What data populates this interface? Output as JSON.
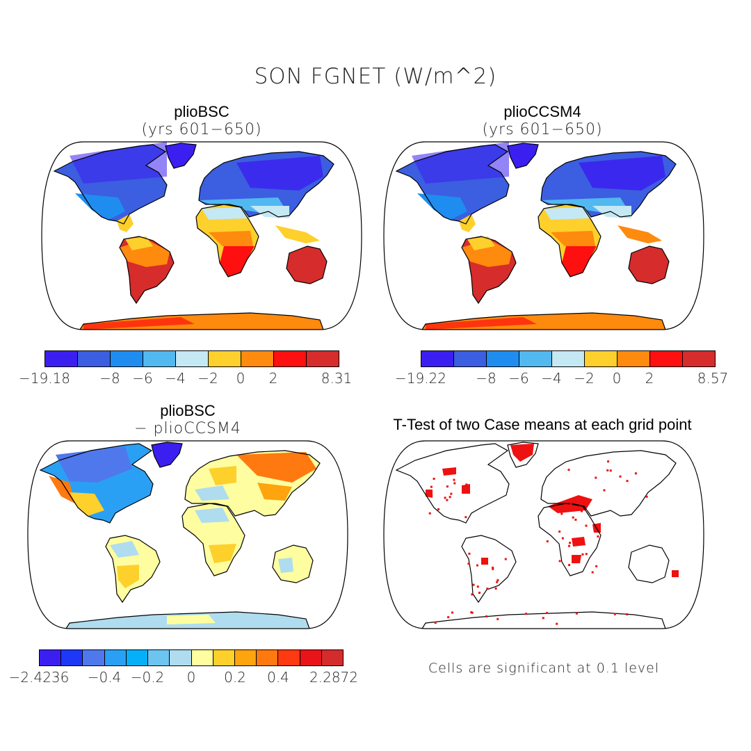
{
  "figure": {
    "title": "SON FGNET (W/m^2)",
    "panels": [
      {
        "title": "plioBSC",
        "subtitle": "(yrs 601−650)",
        "colorbar": {
          "colors": [
            "#3b1ff0",
            "#3c5ee0",
            "#1f8df0",
            "#52b8f0",
            "#c4e8f4",
            "#fed02c",
            "#fe8a0e",
            "#fe1010",
            "#d62c2c"
          ],
          "tick_labels": [
            "−19.18",
            "−8",
            "−6",
            "−4",
            "−2",
            "0",
            "2",
            "8.31"
          ]
        }
      },
      {
        "title": "plioCCSM4",
        "subtitle": "(yrs 601−650)",
        "colorbar": {
          "colors": [
            "#3b1ff0",
            "#3c5ee0",
            "#1f8df0",
            "#52b8f0",
            "#c4e8f4",
            "#fed02c",
            "#fe8a0e",
            "#fe1010",
            "#d62c2c"
          ],
          "tick_labels": [
            "−19.22",
            "−8",
            "−6",
            "−4",
            "−2",
            "0",
            "2",
            "8.57"
          ]
        }
      },
      {
        "title": "plioBSC",
        "subtitle": "− plioCCSM4",
        "colorbar": {
          "colors": [
            "#3b1ff0",
            "#1e38f8",
            "#4f78ec",
            "#2aa0f4",
            "#06b0f8",
            "#6ec4f0",
            "#b0dcf0",
            "#fefea0",
            "#fed02c",
            "#fea40e",
            "#fe7a10",
            "#fe3a10",
            "#e8141a",
            "#d42c2c"
          ],
          "tick_labels": [
            "−2.4236",
            "−0.4",
            "−0.2",
            "0",
            "0.2",
            "0.4",
            "2.2872"
          ]
        }
      },
      {
        "title": "T-Test of two Case means at each grid point",
        "note": "Cells are significant at 0.1 level"
      }
    ]
  }
}
